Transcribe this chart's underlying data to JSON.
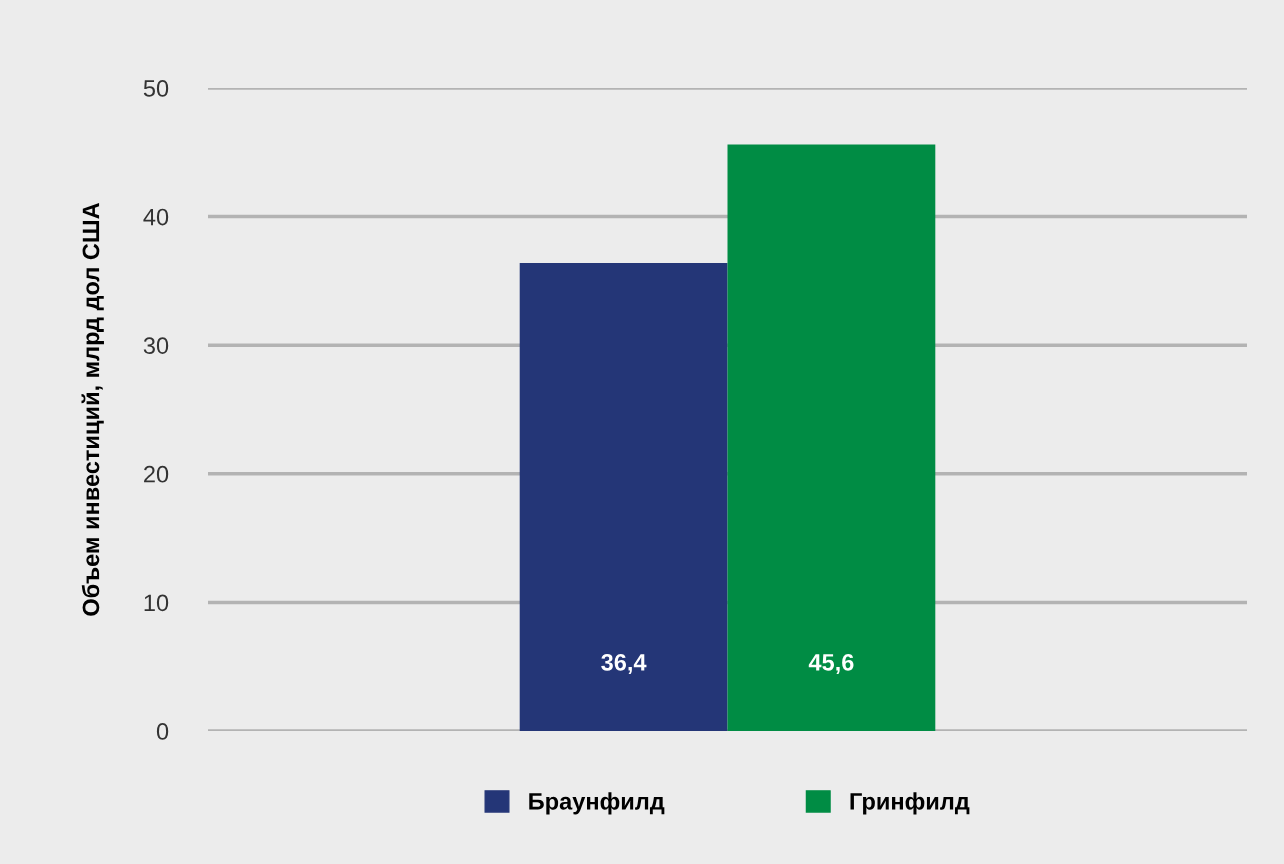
{
  "chart_data": {
    "type": "bar",
    "ylabel": "Объем инвестиций, млрд дол США",
    "categories": [
      null
    ],
    "series": [
      {
        "name": "Браунфилд",
        "color": "#243677",
        "values": [
          36.4
        ],
        "value_labels": [
          "36,4"
        ]
      },
      {
        "name": "Гринфилд",
        "color": "#008c44",
        "values": [
          45.6
        ],
        "value_labels": [
          "45,6"
        ]
      }
    ],
    "ylim": [
      0,
      50
    ],
    "yticks": [
      0,
      10,
      20,
      30,
      40,
      50
    ],
    "grid": "y",
    "legend": "bottom"
  }
}
